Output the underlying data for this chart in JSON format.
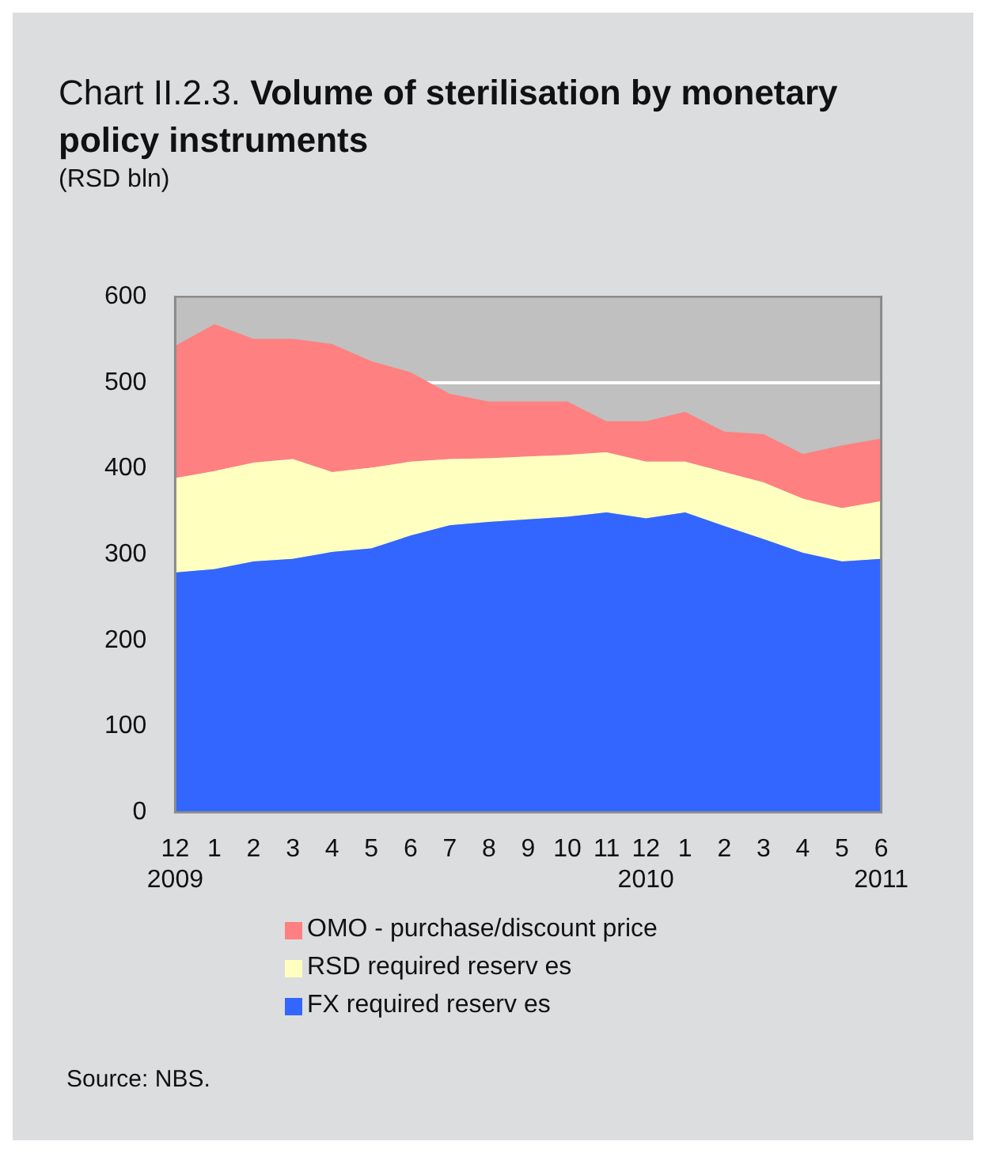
{
  "chart_data": {
    "type": "area",
    "title": "Chart II.2.3. Volume of sterilisation by monetary policy instruments",
    "ylabel": "(RSD bln)",
    "categories": [
      "12\n2009",
      "1",
      "2",
      "3",
      "4",
      "5",
      "6",
      "7",
      "8",
      "9",
      "10",
      "11",
      "12\n2010",
      "1",
      "2",
      "3",
      "4",
      "5",
      "6\n2011"
    ],
    "series": [
      {
        "name": "FX required reserv es",
        "color": "#3366ff",
        "values": [
          279,
          283,
          292,
          295,
          303,
          307,
          322,
          334,
          338,
          341,
          344,
          349,
          342,
          349,
          333,
          318,
          302,
          292,
          295
        ]
      },
      {
        "name": "RSD required reserv es",
        "color": "#ffffc0",
        "values": [
          110,
          114,
          115,
          116,
          93,
          94,
          86,
          77,
          74,
          73,
          72,
          70,
          66,
          59,
          63,
          66,
          63,
          62,
          67
        ]
      },
      {
        "name": "OMO - purchase/discount price",
        "color": "#ff8080",
        "values": [
          154,
          171,
          144,
          140,
          149,
          124,
          104,
          76,
          66,
          64,
          62,
          36,
          47,
          58,
          47,
          56,
          52,
          73,
          73
        ]
      }
    ],
    "stacked": true,
    "ylim": [
      0,
      600
    ],
    "yticks": [
      0,
      100,
      200,
      300,
      400,
      500,
      600
    ],
    "grid": "y",
    "legend": "bottom",
    "annotations": [
      "Source: NBS."
    ]
  }
}
